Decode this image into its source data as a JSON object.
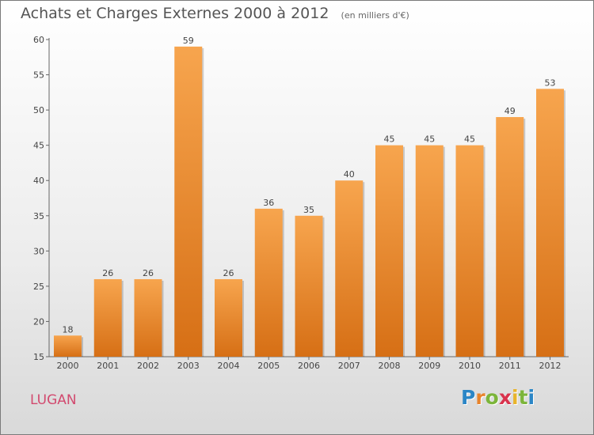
{
  "title": "Achats et Charges Externes 2000 à 2012",
  "subtitle": "(en milliers d'€)",
  "commune": "LUGAN",
  "brand": {
    "letters": [
      "P",
      "r",
      "o",
      "x",
      "i",
      "t",
      "i"
    ],
    "colors": [
      "#2b86c6",
      "#e8842c",
      "#7cb53a",
      "#d9334d",
      "#e8b42c",
      "#7cb53a",
      "#2b86c6"
    ]
  },
  "colors": {
    "bar_top": "#f7a54e",
    "bar_bottom": "#d66f15",
    "commune_text": "#d24a6f"
  },
  "chart_data": {
    "type": "bar",
    "title": "Achats et Charges Externes 2000 à 2012",
    "subtitle": "(en milliers d'€)",
    "categories": [
      "2000",
      "2001",
      "2002",
      "2003",
      "2004",
      "2005",
      "2006",
      "2007",
      "2008",
      "2009",
      "2010",
      "2011",
      "2012"
    ],
    "values": [
      18,
      26,
      26,
      59,
      26,
      36,
      35,
      40,
      45,
      45,
      45,
      49,
      53
    ],
    "ylim": [
      15,
      60
    ],
    "yticks": [
      15,
      20,
      25,
      30,
      35,
      40,
      45,
      50,
      55,
      60
    ],
    "xlabel": "",
    "ylabel": "",
    "grid": false,
    "legend": "none"
  }
}
